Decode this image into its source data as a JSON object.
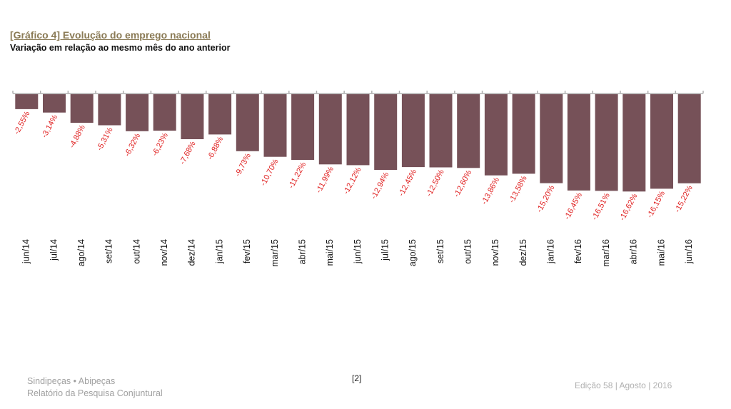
{
  "title": "[Gráfico 4] Evolução do emprego nacional",
  "subtitle": "Variação em relação ao mesmo mês do ano anterior",
  "colors": {
    "bar": "#765158",
    "label": "#e02020",
    "axis": "#b0b0b0"
  },
  "chart_data": {
    "type": "bar",
    "categories": [
      "jun/14",
      "jul/14",
      "ago/14",
      "set/14",
      "out/14",
      "nov/14",
      "dez/14",
      "jan/15",
      "fev/15",
      "mar/15",
      "abr/15",
      "mai/15",
      "jun/15",
      "jul/15",
      "ago/15",
      "set/15",
      "out/15",
      "nov/15",
      "dez/15",
      "jan/16",
      "fev/16",
      "mar/16",
      "abr/16",
      "mai/16",
      "jun/16"
    ],
    "values": [
      -2.55,
      -3.14,
      -4.88,
      -5.31,
      -6.32,
      -6.23,
      -7.68,
      -6.88,
      -9.73,
      -10.7,
      -11.22,
      -11.99,
      -12.12,
      -12.94,
      -12.45,
      -12.5,
      -12.6,
      -13.86,
      -13.58,
      -15.2,
      -16.45,
      -16.51,
      -16.62,
      -16.15,
      -15.22
    ],
    "labels": [
      "-2,55%",
      "-3,14%",
      "-4,88%",
      "-5,31%",
      "-6,32%",
      "-6,23%",
      "-7,68%",
      "-6,88%",
      "-9,73%",
      "-10,70%",
      "-11,22%",
      "-11,99%",
      "-12,12%",
      "-12,94%",
      "-12,45%",
      "-12,50%",
      "-12,60%",
      "-13,86%",
      "-13,58%",
      "-15,20%",
      "-16,45%",
      "-16,51%",
      "-16,62%",
      "-16,15%",
      "-15,22%"
    ],
    "ylim": [
      -20,
      0
    ],
    "grid": false,
    "legend": "none"
  },
  "footer": {
    "line1": "Sindipeças • Abipeças",
    "line2": "Relatório da Pesquisa Conjuntural",
    "page": "[2]",
    "edition": "Edição 58 | Agosto | 2016"
  }
}
